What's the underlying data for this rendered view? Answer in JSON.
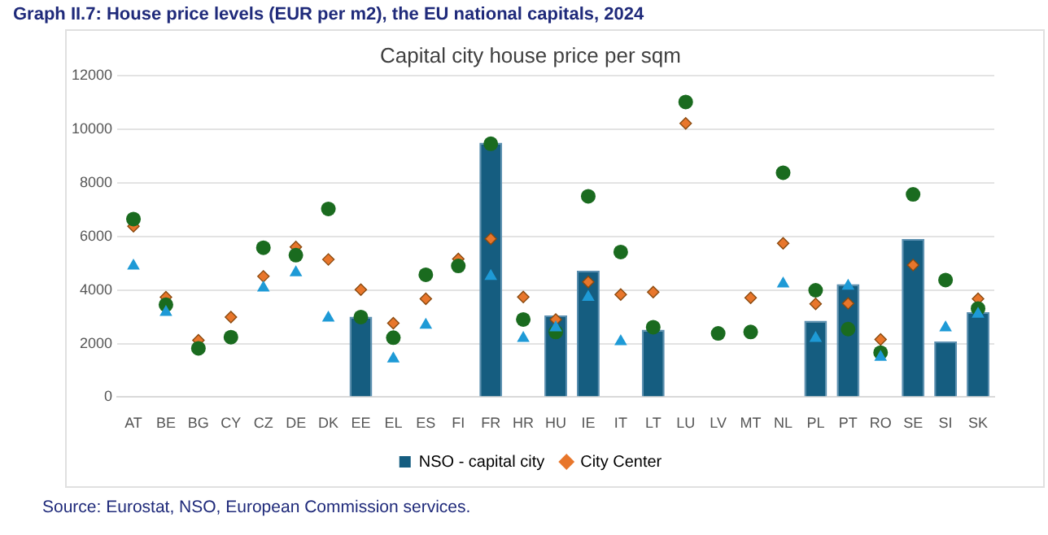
{
  "chart_data": {
    "type": "bar",
    "title": "Graph II.7:   House price levels (EUR per m2), the EU national capitals, 2024",
    "subtitle": "Capital city house price per sqm",
    "categories": [
      "AT",
      "BE",
      "BG",
      "CY",
      "CZ",
      "DE",
      "DK",
      "EE",
      "EL",
      "ES",
      "FI",
      "FR",
      "HR",
      "HU",
      "IE",
      "IT",
      "LT",
      "LU",
      "LV",
      "MT",
      "NL",
      "PL",
      "PT",
      "RO",
      "SE",
      "SI",
      "SK"
    ],
    "series": [
      {
        "name": "NSO - capital city",
        "color": "#155d80",
        "values": [
          null,
          null,
          null,
          null,
          null,
          null,
          null,
          3000,
          null,
          null,
          null,
          9500,
          null,
          3050,
          4720,
          null,
          2520,
          null,
          null,
          null,
          null,
          2850,
          4220,
          null,
          5900,
          2080,
          3170
        ]
      },
      {
        "name": "City Center",
        "type": "scatter",
        "marker": "diamond",
        "color": "#e8762b",
        "values": [
          6380,
          3730,
          2120,
          2990,
          4510,
          5610,
          5140,
          4010,
          2760,
          3670,
          5160,
          5910,
          3740,
          2900,
          4300,
          3830,
          3920,
          10220,
          null,
          3710,
          5740,
          3480,
          3500,
          2150,
          4930,
          null,
          3670
        ]
      },
      {
        "type": "scatter",
        "marker": "circle",
        "color": "#1a6b1f",
        "values": [
          6650,
          3450,
          1820,
          2240,
          5580,
          5300,
          7030,
          2990,
          2220,
          4570,
          4900,
          9460,
          2900,
          2430,
          7500,
          5420,
          2610,
          11020,
          2380,
          2430,
          8380,
          3990,
          2540,
          1660,
          7570,
          4370,
          3310
        ]
      },
      {
        "type": "scatter",
        "marker": "triangle",
        "color": "#1e9ad6",
        "values": [
          4900,
          3170,
          null,
          null,
          4080,
          4650,
          2960,
          null,
          1430,
          2690,
          null,
          4510,
          2200,
          2590,
          3730,
          2080,
          null,
          null,
          null,
          null,
          4230,
          2200,
          4150,
          1490,
          null,
          2590,
          3100
        ]
      }
    ],
    "ylim": [
      0,
      12000
    ],
    "yticks": [
      0,
      2000,
      4000,
      6000,
      8000,
      10000,
      12000
    ],
    "grid": "y",
    "legend": "bottom",
    "annotations": [
      "Source: Eurostat, NSO, European Commission services."
    ]
  }
}
